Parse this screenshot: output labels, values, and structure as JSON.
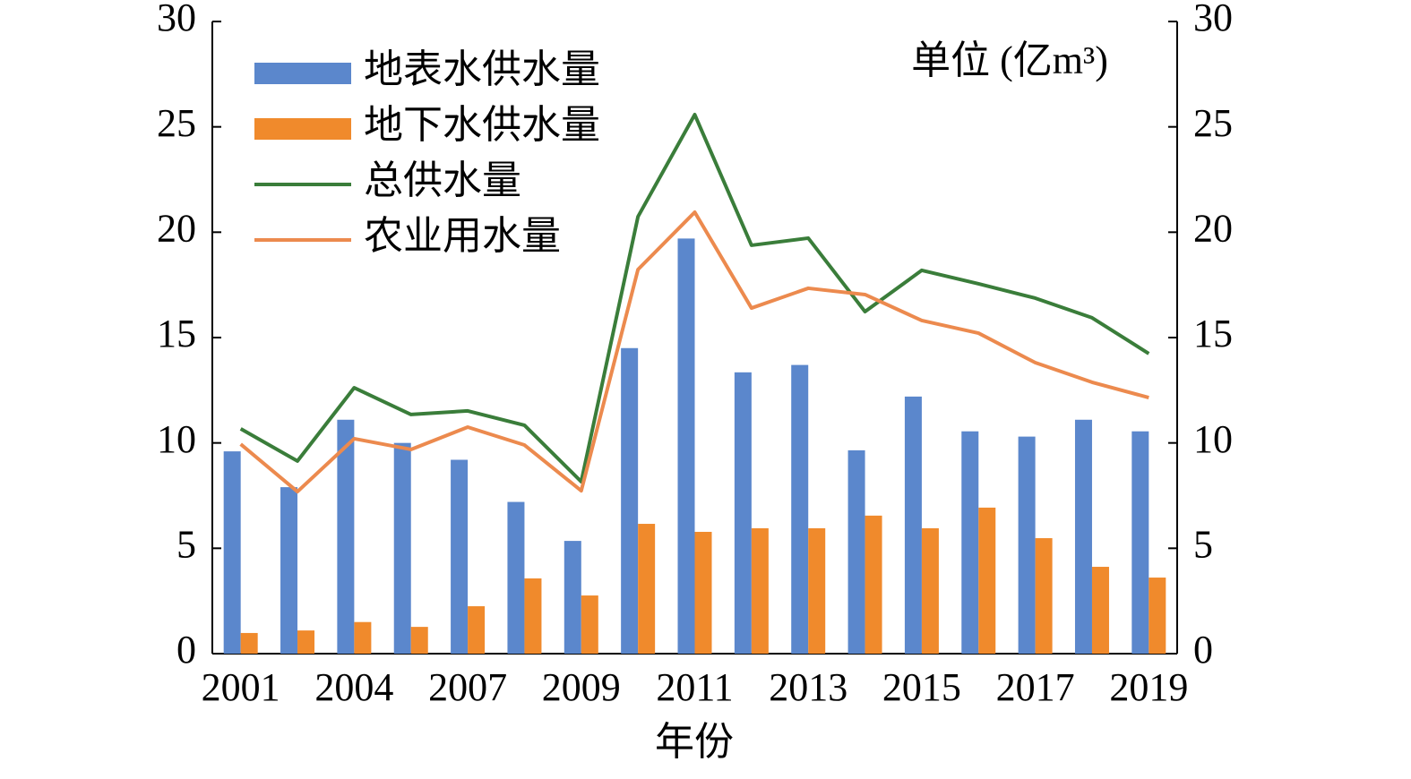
{
  "chart_data": {
    "type": "bar-line",
    "unit_label": "单位 (亿m³)",
    "x_label": "年份",
    "categories": [
      "2001",
      null,
      "2004",
      null,
      "2007",
      null,
      "2009",
      null,
      "2011",
      null,
      "2013",
      null,
      "2015",
      null,
      "2017",
      null,
      "2019"
    ],
    "series": [
      {
        "name": "地表水供水量",
        "type": "bar",
        "color": "#5b87cc",
        "values": [
          9.6,
          7.9,
          11.1,
          10.0,
          9.2,
          7.2,
          5.35,
          14.5,
          19.7,
          13.35,
          13.7,
          9.65,
          12.2,
          10.55,
          10.3,
          11.1,
          10.55
        ]
      },
      {
        "name": "地下水供水量",
        "type": "bar",
        "color": "#f08a2c",
        "values": [
          0.98,
          1.1,
          1.5,
          1.27,
          2.25,
          3.57,
          2.76,
          6.16,
          5.78,
          5.95,
          5.95,
          6.55,
          5.95,
          6.93,
          5.48,
          4.12,
          3.61
        ]
      },
      {
        "name": "总供水量",
        "type": "line",
        "color": "#3a7d3a",
        "values": [
          10.67,
          9.14,
          12.62,
          11.35,
          11.52,
          10.84,
          8.16,
          20.74,
          25.58,
          19.38,
          19.72,
          16.23,
          18.19,
          17.55,
          16.87,
          15.94,
          14.24
        ]
      },
      {
        "name": "农业用水量",
        "type": "line",
        "color": "#ec8a4e",
        "values": [
          9.94,
          7.69,
          10.2,
          9.69,
          10.75,
          9.9,
          7.73,
          18.23,
          20.95,
          16.4,
          17.34,
          17.04,
          15.81,
          15.21,
          13.81,
          12.88,
          12.15
        ]
      }
    ],
    "ylim": [
      0,
      30
    ],
    "yticks": [
      0,
      5,
      10,
      15,
      20,
      25,
      30
    ],
    "y2lim": [
      0,
      30
    ],
    "y2ticks": [
      0,
      5,
      10,
      15,
      20,
      25,
      30
    ]
  }
}
